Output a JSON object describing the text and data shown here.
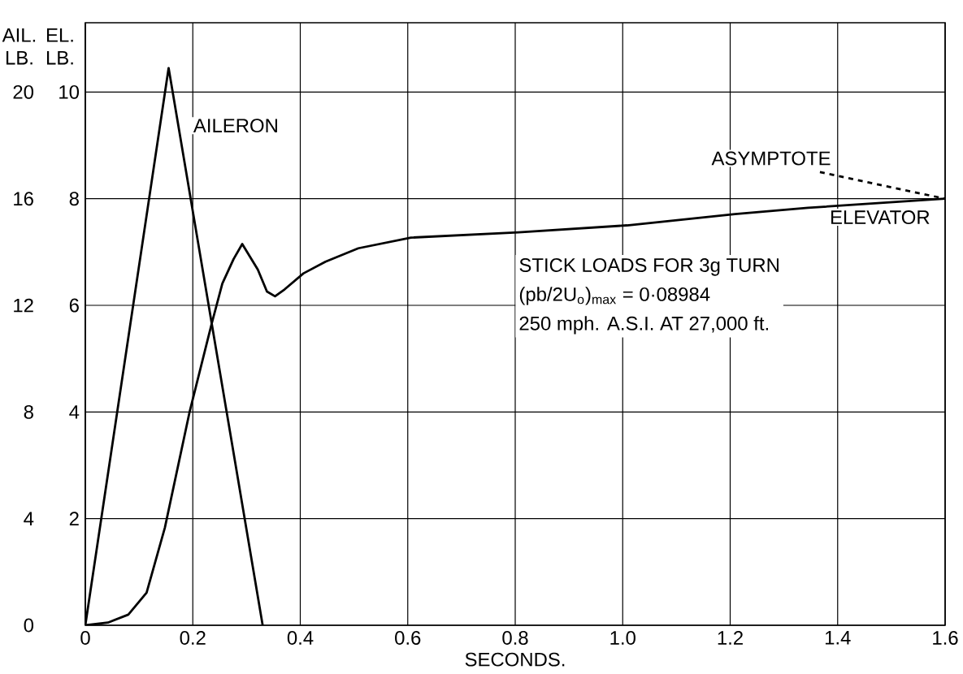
{
  "chart_data": {
    "type": "line",
    "xlabel": "SECONDS.",
    "ylabel": "AIL. LB.",
    "y2label": "EL. LB.",
    "xlim": [
      0,
      1.6
    ],
    "ylim": [
      0,
      22.6
    ],
    "y2lim": [
      0,
      11.3
    ],
    "xticks": [
      0,
      0.2,
      0.4,
      0.6,
      0.8,
      {
        "value": 1,
        "label": "1.0"
      },
      1.2,
      1.4,
      1.6
    ],
    "yticks": [
      0,
      4,
      8,
      12,
      16,
      20
    ],
    "y2ticks": [
      2,
      4,
      6,
      8,
      10
    ],
    "grid": true,
    "series": [
      {
        "name": "AILERON",
        "color": "#000000",
        "line_style": "solid",
        "x": [
          0,
          0.155,
          0.33
        ],
        "values": [
          0,
          20.9,
          0
        ]
      },
      {
        "name": "ELEVATOR",
        "color": "#000000",
        "line_style": "solid",
        "axis": "y2",
        "x": [
          0,
          0.042,
          0.08,
          0.114,
          0.148,
          0.194,
          0.235,
          0.255,
          0.276,
          0.292,
          0.321,
          0.338,
          0.353,
          0.371,
          0.406,
          0.447,
          0.508,
          0.606,
          0.806,
          1.008,
          1.209,
          1.345,
          1.6
        ],
        "values": [
          0,
          0.05,
          0.2,
          0.61,
          1.83,
          4.0,
          5.65,
          6.41,
          6.87,
          7.15,
          6.67,
          6.26,
          6.17,
          6.3,
          6.6,
          6.82,
          7.07,
          7.27,
          7.37,
          7.5,
          7.71,
          7.83,
          8.0
        ]
      },
      {
        "name": "ASYMPTOTE",
        "color": "#000000",
        "line_style": "dashed",
        "axis": "y2",
        "x": [
          1.367,
          1.6
        ],
        "values": [
          8.5,
          8.0
        ]
      }
    ],
    "annotations": [
      "STICK LOADS FOR 3g TURN",
      "(pb/2U$_{o}$)$_{max}$ = 0·08984",
      "250 mph. A.S.I. AT 27,000 ft."
    ]
  }
}
